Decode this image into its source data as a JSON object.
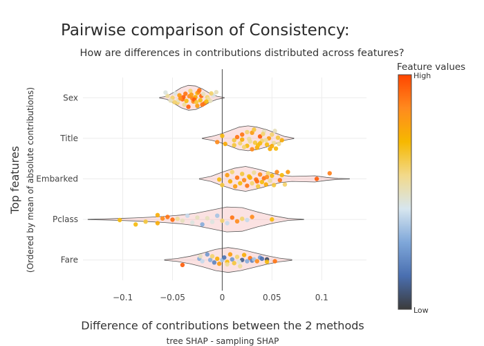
{
  "chart_data": {
    "type": "violin",
    "title": "Pairwise comparison of Consistency:",
    "subtitle": "How are differences in contributions distributed across features?",
    "xlabel": "Difference of contributions between the 2 methods",
    "xsublabel": "tree SHAP - sampling SHAP",
    "ylabel": "Top features",
    "ysublabel": "(Ordered by mean of absolute contributions)",
    "xlim": [
      -0.14,
      0.145
    ],
    "xticks": [
      -0.1,
      -0.05,
      0,
      0.05,
      0.1
    ],
    "xtick_labels": [
      "−0.1",
      "−0.05",
      "0",
      "0.05",
      "0.1"
    ],
    "grid": true,
    "colorbar": {
      "title": "Feature values",
      "high_label": "High",
      "low_label": "Low",
      "colors": [
        "#3b3b3b",
        "#4a6fb0",
        "#7fa7d9",
        "#d7e6ef",
        "#f2d98a",
        "#f6b800",
        "#ff8a1e",
        "#ff4500"
      ]
    },
    "categories": [
      "Sex",
      "Title",
      "Embarked",
      "Pclass",
      "Fare"
    ],
    "series": [
      {
        "feature": "Sex",
        "violin": {
          "x_min": -0.063,
          "x_max": 0.002,
          "profile": [
            0.02,
            0.12,
            0.45,
            0.8,
            1.0,
            0.95,
            0.7,
            0.35,
            0.12,
            0.02
          ]
        },
        "points": [
          [
            -0.034,
            0.72
          ],
          [
            -0.025,
            0.65
          ],
          [
            -0.038,
            0.55
          ],
          [
            -0.018,
            0.45
          ],
          [
            -0.045,
            0.4
          ],
          [
            -0.029,
            0.3
          ],
          [
            -0.022,
            0.2
          ],
          [
            -0.012,
            0.25
          ],
          [
            -0.04,
            0.12
          ],
          [
            -0.03,
            0.05
          ],
          [
            -0.027,
            -0.05
          ],
          [
            -0.05,
            0.0
          ],
          [
            -0.033,
            -0.12
          ],
          [
            -0.021,
            -0.15
          ],
          [
            -0.015,
            -0.05
          ],
          [
            -0.043,
            -0.2
          ],
          [
            -0.037,
            -0.32
          ],
          [
            -0.025,
            -0.38
          ],
          [
            -0.019,
            -0.3
          ],
          [
            -0.047,
            -0.35
          ],
          [
            -0.055,
            -0.15
          ],
          [
            -0.028,
            0.15
          ],
          [
            -0.036,
            0.25
          ],
          [
            -0.024,
            -0.45
          ],
          [
            -0.032,
            -0.55
          ],
          [
            -0.044,
            0.2
          ],
          [
            -0.014,
            0.1
          ],
          [
            -0.009,
            -0.2
          ],
          [
            -0.052,
            0.22
          ],
          [
            -0.02,
            0.55
          ],
          [
            -0.039,
            -0.05
          ],
          [
            -0.011,
            -0.35
          ],
          [
            -0.026,
            0.35
          ],
          [
            -0.031,
            -0.25
          ],
          [
            -0.057,
            -0.42
          ],
          [
            -0.016,
            0.3
          ],
          [
            -0.006,
            -0.45
          ],
          [
            -0.042,
            0.05
          ],
          [
            -0.023,
            -0.6
          ],
          [
            -0.048,
            0.35
          ]
        ],
        "point_values": [
          0.95,
          0.8,
          0.55,
          0.9,
          0.6,
          0.85,
          0.7,
          0.5,
          0.92,
          0.88,
          0.75,
          0.6,
          0.85,
          0.93,
          0.6,
          0.8,
          0.9,
          0.7,
          0.5,
          0.45,
          0.55,
          0.95,
          0.7,
          0.85,
          0.6,
          0.5,
          0.55,
          0.45,
          0.5,
          0.9,
          0.95,
          0.6,
          0.65,
          0.8,
          0.45,
          0.7,
          0.5,
          0.85,
          0.9,
          0.6
        ]
      },
      {
        "feature": "Title",
        "violin": {
          "x_min": -0.02,
          "x_max": 0.072,
          "profile": [
            0.02,
            0.15,
            0.35,
            0.62,
            0.9,
            1.0,
            0.9,
            0.7,
            0.42,
            0.15,
            0.02
          ]
        },
        "points": [
          [
            -0.005,
            0.3
          ],
          [
            0.0,
            -0.2
          ],
          [
            0.003,
            0.45
          ],
          [
            0.012,
            0.15
          ],
          [
            0.018,
            0.4
          ],
          [
            0.02,
            -0.3
          ],
          [
            0.025,
            0.6
          ],
          [
            0.027,
            0.05
          ],
          [
            0.03,
            -0.45
          ],
          [
            0.033,
            0.35
          ],
          [
            0.035,
            0.75
          ],
          [
            0.038,
            -0.15
          ],
          [
            0.04,
            0.2
          ],
          [
            0.042,
            -0.55
          ],
          [
            0.045,
            0.5
          ],
          [
            0.047,
            0.0
          ],
          [
            0.05,
            -0.3
          ],
          [
            0.052,
            0.38
          ],
          [
            0.054,
            0.82
          ],
          [
            0.056,
            -0.05
          ],
          [
            0.05,
            0.62
          ],
          [
            0.015,
            -0.1
          ],
          [
            0.022,
            0.7
          ],
          [
            0.028,
            0.25
          ],
          [
            0.032,
            -0.7
          ],
          [
            0.036,
            0.55
          ],
          [
            0.041,
            -0.35
          ],
          [
            0.044,
            0.15
          ],
          [
            0.048,
            0.85
          ],
          [
            0.053,
            -0.6
          ],
          [
            0.038,
            0.4
          ],
          [
            0.025,
            -0.5
          ],
          [
            0.012,
            0.55
          ],
          [
            0.06,
            0.15
          ],
          [
            0.057,
            0.45
          ],
          [
            0.03,
            0.88
          ],
          [
            0.02,
            0.1
          ]
        ],
        "point_values": [
          0.85,
          0.7,
          0.75,
          0.65,
          0.6,
          0.9,
          0.7,
          0.55,
          0.8,
          0.65,
          0.75,
          0.95,
          0.6,
          0.5,
          0.7,
          0.8,
          0.6,
          0.55,
          0.7,
          0.65,
          0.75,
          0.9,
          0.6,
          0.55,
          0.65,
          0.7,
          0.6,
          0.55,
          0.75,
          0.5,
          0.7,
          0.6,
          0.65,
          0.75,
          0.55,
          0.85,
          0.75
        ]
      },
      {
        "feature": "Embarked",
        "violin": {
          "x_min": -0.023,
          "x_max": 0.128,
          "profile": [
            0.02,
            0.2,
            0.55,
            0.85,
            1.0,
            0.8,
            0.55,
            0.3,
            0.2,
            0.22,
            0.25,
            0.12,
            0.04,
            0.01
          ]
        },
        "points": [
          [
            -0.003,
            0.05
          ],
          [
            0.0,
            0.5
          ],
          [
            0.005,
            -0.3
          ],
          [
            0.008,
            0.2
          ],
          [
            0.01,
            -0.55
          ],
          [
            0.013,
            0.6
          ],
          [
            0.015,
            -0.1
          ],
          [
            0.018,
            0.35
          ],
          [
            0.02,
            -0.4
          ],
          [
            0.022,
            0.1
          ],
          [
            0.025,
            0.55
          ],
          [
            0.027,
            -0.2
          ],
          [
            0.03,
            0.35
          ],
          [
            0.032,
            -0.5
          ],
          [
            0.034,
            0.05
          ],
          [
            0.036,
            0.6
          ],
          [
            0.038,
            -0.35
          ],
          [
            0.04,
            0.25
          ],
          [
            0.042,
            -0.05
          ],
          [
            0.044,
            0.45
          ],
          [
            0.046,
            -0.45
          ],
          [
            0.048,
            0.15
          ],
          [
            0.05,
            -0.25
          ],
          [
            0.052,
            0.5
          ],
          [
            0.055,
            -0.55
          ],
          [
            0.058,
            0.1
          ],
          [
            0.06,
            -0.3
          ],
          [
            0.063,
            0.45
          ],
          [
            0.066,
            -0.55
          ],
          [
            0.095,
            0.0
          ],
          [
            0.108,
            -0.45
          ],
          [
            0.035,
            0.2
          ],
          [
            0.045,
            -0.15
          ],
          [
            0.028,
            -0.1
          ]
        ],
        "point_values": [
          0.7,
          0.65,
          0.8,
          0.75,
          0.6,
          0.8,
          0.9,
          0.7,
          0.65,
          0.85,
          0.9,
          0.7,
          0.6,
          0.55,
          0.9,
          0.65,
          0.85,
          0.7,
          0.9,
          0.75,
          0.6,
          0.55,
          0.7,
          0.65,
          0.85,
          0.9,
          0.7,
          0.6,
          0.8,
          0.95,
          0.88,
          0.92,
          0.85,
          0.75
        ]
      },
      {
        "feature": "Pclass",
        "violin": {
          "x_min": -0.135,
          "x_max": 0.082,
          "profile": [
            0.01,
            0.04,
            0.08,
            0.12,
            0.18,
            0.25,
            0.35,
            0.5,
            0.75,
            1.0,
            0.95,
            0.6,
            0.3,
            0.08,
            0.01
          ]
        },
        "points": [
          [
            -0.103,
            0.05
          ],
          [
            -0.087,
            0.4
          ],
          [
            -0.077,
            0.18
          ],
          [
            -0.065,
            -0.35
          ],
          [
            -0.065,
            0.3
          ],
          [
            -0.06,
            -0.08
          ],
          [
            -0.055,
            -0.2
          ],
          [
            -0.05,
            0.02
          ],
          [
            -0.045,
            -0.05
          ],
          [
            -0.04,
            0.1
          ],
          [
            -0.035,
            -0.3
          ],
          [
            -0.03,
            0.25
          ],
          [
            -0.025,
            -0.15
          ],
          [
            -0.02,
            0.4
          ],
          [
            -0.015,
            -0.1
          ],
          [
            -0.01,
            0.2
          ],
          [
            -0.005,
            -0.3
          ],
          [
            0.0,
            0.1
          ],
          [
            0.005,
            0.3
          ],
          [
            0.01,
            -0.15
          ],
          [
            0.015,
            0.15
          ],
          [
            0.02,
            -0.05
          ],
          [
            0.025,
            0.05
          ],
          [
            0.03,
            -0.2
          ],
          [
            0.05,
            0.0
          ]
        ],
        "point_values": [
          0.7,
          0.7,
          0.65,
          0.75,
          0.75,
          0.85,
          0.9,
          0.92,
          0.55,
          0.5,
          0.4,
          0.45,
          0.5,
          0.3,
          0.5,
          0.45,
          0.35,
          0.6,
          0.4,
          0.9,
          0.85,
          0.6,
          0.4,
          0.85,
          0.7
        ]
      },
      {
        "feature": "Fare",
        "violin": {
          "x_min": -0.058,
          "x_max": 0.07,
          "profile": [
            0.02,
            0.12,
            0.3,
            0.55,
            0.85,
            1.0,
            0.85,
            0.6,
            0.35,
            0.15,
            0.03
          ]
        },
        "points": [
          [
            -0.04,
            0.4
          ],
          [
            -0.023,
            -0.1
          ],
          [
            -0.022,
            -0.3
          ],
          [
            -0.02,
            0.1
          ],
          [
            -0.015,
            -0.45
          ],
          [
            -0.012,
            0.0
          ],
          [
            -0.01,
            -0.3
          ],
          [
            -0.008,
            0.2
          ],
          [
            -0.005,
            -0.1
          ],
          [
            -0.003,
            0.3
          ],
          [
            0.0,
            0.0
          ],
          [
            0.002,
            -0.2
          ],
          [
            0.005,
            0.15
          ],
          [
            0.008,
            -0.45
          ],
          [
            0.01,
            -0.05
          ],
          [
            0.012,
            0.25
          ],
          [
            0.015,
            -0.25
          ],
          [
            0.018,
            0.5
          ],
          [
            0.02,
            0.0
          ],
          [
            0.022,
            -0.4
          ],
          [
            0.025,
            0.1
          ],
          [
            0.028,
            -0.15
          ],
          [
            0.03,
            0.05
          ],
          [
            0.032,
            -0.05
          ],
          [
            0.035,
            0.1
          ],
          [
            0.038,
            -0.2
          ],
          [
            0.04,
            -0.1
          ],
          [
            0.045,
            -0.05
          ],
          [
            0.045,
            0.15
          ],
          [
            0.053,
            0.1
          ],
          [
            0.017,
            0.15
          ],
          [
            0.005,
            0.35
          ]
        ],
        "point_values": [
          0.95,
          0.3,
          0.5,
          0.4,
          0.25,
          0.3,
          0.6,
          0.2,
          0.75,
          0.8,
          0.35,
          0.15,
          0.7,
          0.8,
          0.25,
          0.65,
          0.6,
          0.55,
          0.1,
          0.75,
          0.3,
          0.9,
          0.2,
          0.35,
          0.85,
          0.25,
          0.15,
          0.05,
          0.7,
          0.9,
          0.45,
          0.55
        ]
      }
    ]
  }
}
